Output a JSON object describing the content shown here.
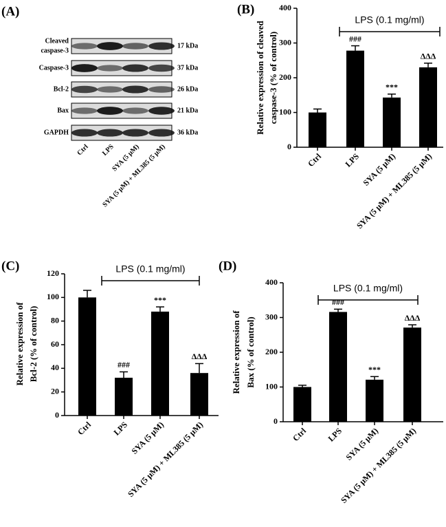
{
  "blot": {
    "panel_label": "(A)",
    "rows": [
      {
        "protein": [
          "Cleaved",
          "caspase-3"
        ],
        "size": "17 kDa"
      },
      {
        "protein": [
          "Caspase-3"
        ],
        "size": "37 kDa"
      },
      {
        "protein": [
          "Bcl-2"
        ],
        "size": "26 kDa"
      },
      {
        "protein": [
          "Bax"
        ],
        "size": "21 kDa"
      },
      {
        "protein": [
          "GAPDH"
        ],
        "size": "36 kDa"
      }
    ],
    "lanes": [
      "Ctrl",
      "LPS",
      "SYA (5 μM)",
      "SYA (5 μM) + ML385 (5 μM)"
    ]
  },
  "chart_data": [
    {
      "type": "bar",
      "panel_label": "(B)",
      "y_label": [
        "Relative expression of cleaved",
        "caspase-3 (% of control)"
      ],
      "categories": [
        "Ctrl",
        "LPS",
        "SYA (5 μM)",
        "SYA (5 μM) + ML385 (5 μM)"
      ],
      "values": [
        100,
        278,
        143,
        230
      ],
      "errors": [
        10,
        14,
        10,
        12
      ],
      "annotations": [
        null,
        "###",
        "***",
        "ΔΔΔ"
      ],
      "bracket_label": "LPS (0.1 mg/ml)",
      "color": "#000000",
      "ylim": [
        0,
        400
      ],
      "yticks": [
        0,
        100,
        200,
        300,
        400
      ]
    },
    {
      "type": "bar",
      "panel_label": "(C)",
      "y_label": [
        "Relative expression of",
        "Bcl-2 (% of control)"
      ],
      "categories": [
        "Ctrl",
        "LPS",
        "SYA (5 μM)",
        "SYA (5 μM) + ML385 (5 μM)"
      ],
      "values": [
        100,
        32,
        88,
        36
      ],
      "errors": [
        6,
        5,
        4,
        8
      ],
      "annotations": [
        null,
        "###",
        "***",
        "ΔΔΔ"
      ],
      "bracket_label": "LPS (0.1 mg/ml)",
      "color": "#000000",
      "ylim": [
        0,
        120
      ],
      "yticks": [
        0,
        20,
        40,
        60,
        80,
        100,
        120
      ]
    },
    {
      "type": "bar",
      "panel_label": "(D)",
      "y_label": [
        "Relative expression of",
        "Bax (% of control)"
      ],
      "categories": [
        "Ctrl",
        "LPS",
        "SYA (5 μM)",
        "SYA (5 μM) + ML385 (5 μM)"
      ],
      "values": [
        100,
        316,
        121,
        271
      ],
      "errors": [
        5,
        8,
        9,
        8
      ],
      "annotations": [
        null,
        "###",
        "***",
        "ΔΔΔ"
      ],
      "bracket_label": "LPS (0.1 mg/ml)",
      "color": "#000000",
      "ylim": [
        0,
        400
      ],
      "yticks": [
        0,
        100,
        200,
        300,
        400
      ]
    }
  ]
}
